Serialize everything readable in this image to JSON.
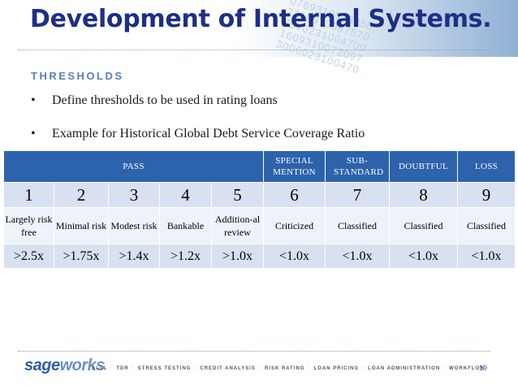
{
  "title": "Development of Internal Systems.",
  "section_heading": "THRESHOLDS",
  "bullets": [
    "Define thresholds to be used in rating loans",
    "Example for Historical Global Debt Service Coverage Ratio"
  ],
  "bullet_symbol": "•",
  "table": {
    "categories": [
      {
        "label": "PASS",
        "span": 5
      },
      {
        "label": "SPECIAL MENTION",
        "span": 1
      },
      {
        "label": "SUB-STANDARD",
        "span": 1
      },
      {
        "label": "DOUBTFUL",
        "span": 1
      },
      {
        "label": "LOSS",
        "span": 1
      }
    ],
    "ratings": [
      "1",
      "2",
      "3",
      "4",
      "5",
      "6",
      "7",
      "8",
      "9"
    ],
    "descriptions": [
      "Largely risk free",
      "Minimal risk",
      "Modest risk",
      "Bankable",
      "Addition-al review",
      "Criticized",
      "Classified",
      "Classified",
      "Classified"
    ],
    "thresholds": [
      ">2.5x",
      ">1.75x",
      ">1.4x",
      ">1.2x",
      ">1.0x",
      "<1.0x",
      "<1.0x",
      "<1.0x",
      "<1.0x"
    ]
  },
  "footer": {
    "logo_part1": "sage",
    "logo_part2": "works",
    "nav": [
      "ALLL",
      "TDR",
      "STRESS TESTING",
      "CREDIT ANALYSIS",
      "RISK RATING",
      "LOAN PRICING",
      "LOAN ADMINISTRATION",
      "WORKFLOW"
    ],
    "page_number": "19"
  },
  "colors": {
    "title": "#1d2f86",
    "header_row": "#2d62ad",
    "row_dark": "#d7e1f1",
    "row_light": "#eef2f9",
    "section": "#5a80b9"
  }
}
